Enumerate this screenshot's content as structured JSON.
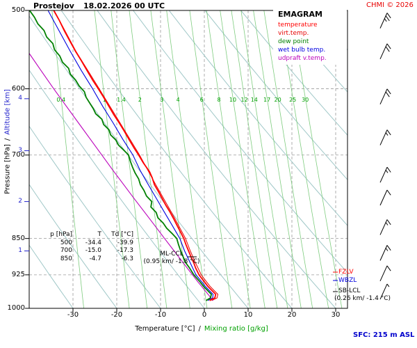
{
  "header": {
    "station": "Prostejov",
    "datetime": "18.02.2026 00 UTC",
    "copyright": "CHMI © 2026"
  },
  "legend": {
    "title": "EMAGRAM",
    "items": [
      {
        "label": "temperature",
        "color": "#ff0000"
      },
      {
        "label": "virt.temp.",
        "color": "#e60000"
      },
      {
        "label": "dew point",
        "color": "#008000"
      },
      {
        "label": "wet bulb temp.",
        "color": "#0000e0"
      },
      {
        "label": "udpraft v.temp.",
        "color": "#bb00bb"
      }
    ]
  },
  "axes": {
    "pressure_label": "Pressure [hPa]",
    "altitude_label": "Altitude [km]",
    "axis_sep": "/",
    "x_label_temp": "Temperature [°C]",
    "x_label_mix": "Mixing ratio [g/kg]",
    "pressure_ticks": [
      500,
      600,
      700,
      850,
      925,
      1000
    ],
    "altitude_ticks": [
      {
        "km": 1,
        "p": 875
      },
      {
        "km": 2,
        "p": 780
      },
      {
        "km": 3,
        "p": 693
      },
      {
        "km": 4,
        "p": 614
      }
    ],
    "temp_ticks": [
      -30,
      -20,
      -10,
      0,
      10,
      20,
      30
    ]
  },
  "table": {
    "headers": [
      "p [hPa]",
      "T",
      "Td [°C]"
    ],
    "rows": [
      [
        "500",
        "-34.4",
        "-39.9"
      ],
      [
        "700",
        "-15.0",
        "-17.3"
      ],
      [
        "850",
        "-4.7",
        "-6.3"
      ]
    ]
  },
  "annotations": {
    "ml_ccl": {
      "line1": "ML-CCL",
      "line2": "(0.95 km/ -1.8 °C)"
    },
    "fzlv": {
      "label": "FZLV",
      "color": "#ff0000"
    },
    "wbzl": {
      "label": "WBZL",
      "color": "#0000e0"
    },
    "sb_lcl": {
      "line1": "SB-LCL",
      "line2": "(0.26 km/ -1.4 °C)"
    },
    "sfc": "SFC: 215 m ASL"
  },
  "chart_data": {
    "type": "line",
    "title": "EMAGRAM sounding Prostejov 18.02.2026 00 UTC",
    "x_axis": {
      "label": "Temperature [°C]",
      "range": [
        -40,
        32.7
      ],
      "ticks": [
        -30,
        -20,
        -10,
        0,
        10,
        20,
        30
      ]
    },
    "y_axis": {
      "label": "Pressure [hPa]",
      "scale": "log",
      "range": [
        500,
        1000
      ],
      "ticks": [
        500,
        600,
        700,
        850,
        925,
        1000
      ]
    },
    "grid": "dashed",
    "dry_adiabats_theta_c": [
      -40,
      -30,
      -20,
      -10,
      0,
      10,
      20,
      30,
      40,
      50,
      60,
      70,
      80,
      90,
      100
    ],
    "mixing_ratio_lines": [
      0.4,
      1,
      1.4,
      2,
      3,
      4,
      6,
      8,
      10,
      12,
      14,
      17,
      20,
      25,
      30
    ],
    "series": [
      {
        "id": "virt-temp",
        "name": "virt.temp.",
        "color": "#e60000",
        "width": 1,
        "points": [
          [
            982,
            1.7
          ],
          [
            976,
            2.9
          ],
          [
            968,
            3.1
          ],
          [
            958,
            2.1
          ],
          [
            950,
            1.3
          ],
          [
            940,
            0.5
          ],
          [
            925,
            -0.7
          ],
          [
            900,
            -2.0
          ],
          [
            875,
            -3.2
          ],
          [
            850,
            -4.3
          ],
          [
            800,
            -7.5
          ],
          [
            750,
            -11.1
          ],
          [
            700,
            -14.8
          ],
          [
            650,
            -19.2
          ],
          [
            600,
            -24.0
          ],
          [
            550,
            -29.3
          ],
          [
            500,
            -34.3
          ]
        ]
      },
      {
        "id": "wet-bulb",
        "name": "wet bulb temp.",
        "color": "#0000e0",
        "width": 1.1,
        "points": [
          [
            982,
            0.8
          ],
          [
            976,
            1.9
          ],
          [
            968,
            2.0
          ],
          [
            958,
            1.0
          ],
          [
            950,
            0.2
          ],
          [
            940,
            -0.6
          ],
          [
            925,
            -1.9
          ],
          [
            900,
            -3.2
          ],
          [
            875,
            -4.5
          ],
          [
            850,
            -5.6
          ],
          [
            825,
            -7.3
          ],
          [
            800,
            -9.1
          ],
          [
            775,
            -10.9
          ],
          [
            750,
            -12.8
          ],
          [
            725,
            -14.7
          ],
          [
            700,
            -16.3
          ],
          [
            675,
            -18.6
          ],
          [
            650,
            -20.8
          ],
          [
            625,
            -23.2
          ],
          [
            600,
            -25.5
          ],
          [
            575,
            -28.1
          ],
          [
            550,
            -30.6
          ],
          [
            525,
            -33.1
          ],
          [
            500,
            -35.7
          ]
        ]
      },
      {
        "id": "updraft-virt-temp",
        "name": "udpraft v.temp.",
        "color": "#bb00bb",
        "width": 1.1,
        "points": [
          [
            982,
            2.0
          ],
          [
            960,
            0.2
          ],
          [
            940,
            -1.5
          ],
          [
            925,
            -2.7
          ],
          [
            900,
            -4.8
          ],
          [
            875,
            -6.9
          ],
          [
            850,
            -9.1
          ],
          [
            825,
            -11.3
          ],
          [
            800,
            -13.6
          ],
          [
            775,
            -16.0
          ],
          [
            750,
            -18.4
          ],
          [
            725,
            -20.9
          ],
          [
            700,
            -23.4
          ],
          [
            675,
            -26.0
          ],
          [
            650,
            -28.7
          ],
          [
            625,
            -31.5
          ],
          [
            600,
            -34.4
          ],
          [
            575,
            -37.3
          ],
          [
            550,
            -40.3
          ]
        ]
      },
      {
        "id": "temperature",
        "name": "temperature",
        "color": "#ff0000",
        "width": 1.8,
        "points": [
          [
            982,
            1.2
          ],
          [
            976,
            2.4
          ],
          [
            968,
            2.6
          ],
          [
            958,
            1.6
          ],
          [
            950,
            0.8
          ],
          [
            940,
            0.0
          ],
          [
            925,
            -1.2
          ],
          [
            910,
            -2.0
          ],
          [
            900,
            -2.4
          ],
          [
            888,
            -3.0
          ],
          [
            875,
            -3.6
          ],
          [
            862,
            -4.2
          ],
          [
            850,
            -4.7
          ],
          [
            838,
            -5.4
          ],
          [
            825,
            -6.2
          ],
          [
            812,
            -7.0
          ],
          [
            800,
            -7.8
          ],
          [
            788,
            -8.7
          ],
          [
            775,
            -9.6
          ],
          [
            762,
            -10.5
          ],
          [
            750,
            -11.4
          ],
          [
            738,
            -11.9
          ],
          [
            728,
            -12.5
          ],
          [
            712,
            -14.0
          ],
          [
            700,
            -15.0
          ],
          [
            688,
            -16.1
          ],
          [
            675,
            -17.2
          ],
          [
            662,
            -18.3
          ],
          [
            650,
            -19.4
          ],
          [
            638,
            -20.6
          ],
          [
            625,
            -21.8
          ],
          [
            612,
            -23.0
          ],
          [
            600,
            -24.2
          ],
          [
            588,
            -25.5
          ],
          [
            575,
            -26.8
          ],
          [
            562,
            -28.1
          ],
          [
            550,
            -29.4
          ],
          [
            538,
            -30.6
          ],
          [
            525,
            -31.9
          ],
          [
            512,
            -33.1
          ],
          [
            500,
            -34.4
          ]
        ]
      },
      {
        "id": "dew-point",
        "name": "dew point",
        "color": "#008000",
        "width": 1.8,
        "points": [
          [
            982,
            0.4
          ],
          [
            976,
            1.4
          ],
          [
            968,
            1.6
          ],
          [
            958,
            0.6
          ],
          [
            950,
            -0.2
          ],
          [
            940,
            -1.0
          ],
          [
            925,
            -2.4
          ],
          [
            910,
            -3.4
          ],
          [
            900,
            -4.2
          ],
          [
            888,
            -4.8
          ],
          [
            875,
            -5.4
          ],
          [
            862,
            -5.9
          ],
          [
            850,
            -6.3
          ],
          [
            840,
            -7.4
          ],
          [
            830,
            -8.6
          ],
          [
            820,
            -9.4
          ],
          [
            810,
            -10.6
          ],
          [
            800,
            -11.0
          ],
          [
            790,
            -12.2
          ],
          [
            780,
            -12.0
          ],
          [
            770,
            -13.2
          ],
          [
            760,
            -13.8
          ],
          [
            750,
            -14.6
          ],
          [
            740,
            -15.0
          ],
          [
            730,
            -15.8
          ],
          [
            720,
            -16.4
          ],
          [
            710,
            -16.9
          ],
          [
            700,
            -17.3
          ],
          [
            692,
            -18.4
          ],
          [
            684,
            -19.6
          ],
          [
            676,
            -20.2
          ],
          [
            668,
            -21.4
          ],
          [
            660,
            -21.8
          ],
          [
            652,
            -23.0
          ],
          [
            644,
            -23.4
          ],
          [
            636,
            -24.8
          ],
          [
            628,
            -25.4
          ],
          [
            620,
            -26.2
          ],
          [
            612,
            -27.0
          ],
          [
            604,
            -27.4
          ],
          [
            596,
            -28.6
          ],
          [
            588,
            -29.4
          ],
          [
            580,
            -30.6
          ],
          [
            572,
            -31.0
          ],
          [
            564,
            -32.4
          ],
          [
            556,
            -33.0
          ],
          [
            548,
            -34.2
          ],
          [
            540,
            -34.6
          ],
          [
            532,
            -36.0
          ],
          [
            524,
            -36.6
          ],
          [
            516,
            -38.0
          ],
          [
            508,
            -38.8
          ],
          [
            500,
            -39.9
          ]
        ]
      }
    ],
    "winds": [
      {
        "p": 512,
        "kt": 25
      },
      {
        "p": 550,
        "kt": 20
      },
      {
        "p": 611,
        "kt": 20
      },
      {
        "p": 672,
        "kt": 15
      },
      {
        "p": 733,
        "kt": 15
      },
      {
        "p": 773,
        "kt": 10
      },
      {
        "p": 828,
        "kt": 15
      },
      {
        "p": 879,
        "kt": 15
      },
      {
        "p": 922,
        "kt": 10
      },
      {
        "p": 962,
        "kt": 5
      }
    ]
  }
}
